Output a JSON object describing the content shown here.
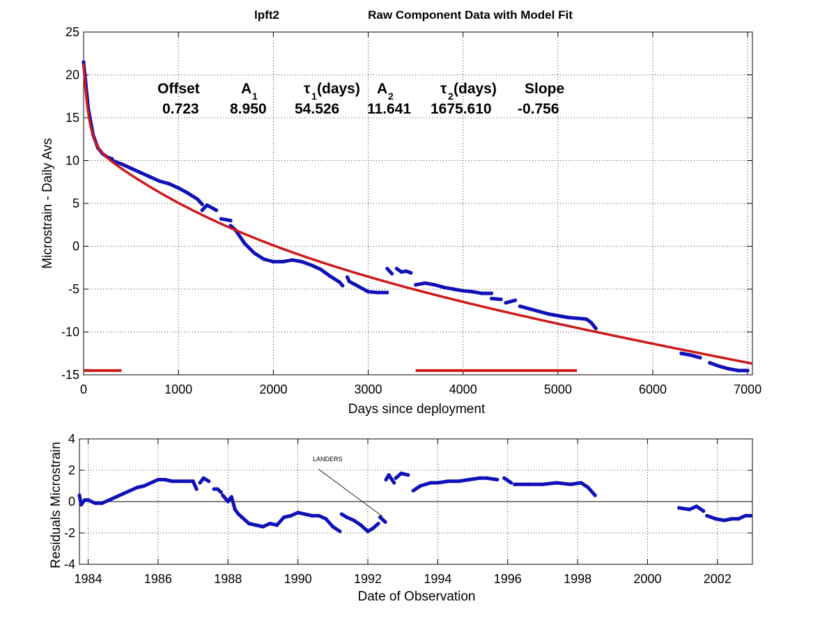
{
  "figure": {
    "station": "lpft2",
    "title": "Raw Component Data with Model Fit"
  },
  "colors": {
    "data": "#1010b8",
    "model": "#cc1a1a",
    "axes": "#000000"
  },
  "params": {
    "headers": [
      "Offset",
      "A",
      "τ",
      "(days)",
      "A",
      "τ",
      "(days)",
      "Slope"
    ],
    "subscripts": [
      "1",
      "1",
      "2",
      "2"
    ],
    "values": [
      "0.723",
      "8.950",
      "54.526",
      "11.641",
      "1675.610",
      "-0.756"
    ]
  },
  "annotation": {
    "text": "LANDERS"
  },
  "chart_data": [
    {
      "type": "scatter",
      "xlabel": "Days since deployment",
      "ylabel": "Microstrain - Daily Avs",
      "xlim": [
        0,
        7050
      ],
      "ylim": [
        -15,
        25
      ],
      "xticks": [
        0,
        1000,
        2000,
        3000,
        4000,
        5000,
        6000,
        7000
      ],
      "yticks": [
        -15,
        -10,
        -5,
        0,
        5,
        10,
        15,
        20,
        25
      ],
      "grid": true,
      "model": {
        "offset": 0.723,
        "A1": 8.95,
        "tau1": 54.526,
        "A2": 11.641,
        "tau2": 1675.61,
        "slope": -0.756,
        "x_range": [
          0,
          7050
        ]
      },
      "segments": [
        {
          "x": [
            0,
            50,
            100,
            150,
            200,
            250,
            300
          ],
          "y": [
            21.5,
            16.0,
            13.0,
            11.5,
            10.8,
            10.4,
            10.2
          ]
        },
        {
          "x": [
            300,
            400,
            500,
            600,
            700,
            800,
            900,
            1000,
            1100,
            1200,
            1250
          ],
          "y": [
            10.0,
            9.6,
            9.1,
            8.6,
            8.1,
            7.6,
            7.3,
            6.8,
            6.2,
            5.5,
            4.9
          ]
        },
        {
          "x": [
            1250,
            1300,
            1400
          ],
          "y": [
            4.2,
            4.8,
            4.2
          ]
        },
        {
          "x": [
            1450,
            1550
          ],
          "y": [
            3.2,
            3.0
          ]
        },
        {
          "x": [
            1550,
            1600,
            1700,
            1800,
            1900,
            2000,
            2100,
            2200,
            2300,
            2400,
            2500,
            2600,
            2700,
            2730
          ],
          "y": [
            2.4,
            1.9,
            0.3,
            -0.8,
            -1.5,
            -1.8,
            -1.8,
            -1.6,
            -1.8,
            -2.2,
            -2.7,
            -3.5,
            -4.2,
            -4.6
          ]
        },
        {
          "x": [
            2780,
            2800,
            2900,
            3000,
            3100,
            3200
          ],
          "y": [
            -3.6,
            -4.1,
            -4.7,
            -5.3,
            -5.4,
            -5.4
          ]
        },
        {
          "x": [
            3200,
            3250
          ],
          "y": [
            -2.6,
            -3.2
          ]
        },
        {
          "x": [
            3300,
            3350,
            3400,
            3450
          ],
          "y": [
            -2.6,
            -3.0,
            -2.9,
            -3.1
          ]
        },
        {
          "x": [
            3500,
            3600,
            3700,
            3800,
            3900,
            4000,
            4100,
            4200,
            4300
          ],
          "y": [
            -4.5,
            -4.3,
            -4.5,
            -4.8,
            -5.0,
            -5.2,
            -5.3,
            -5.5,
            -5.5
          ]
        },
        {
          "x": [
            4300,
            4400
          ],
          "y": [
            -6.1,
            -6.2
          ]
        },
        {
          "x": [
            4450,
            4550
          ],
          "y": [
            -6.6,
            -6.3
          ]
        },
        {
          "x": [
            4600,
            4700,
            4800,
            4900,
            5000,
            5100,
            5200,
            5300,
            5350,
            5400
          ],
          "y": [
            -7.0,
            -7.3,
            -7.6,
            -7.9,
            -8.1,
            -8.3,
            -8.4,
            -8.5,
            -8.9,
            -9.6
          ]
        },
        {
          "x": [
            6300,
            6400,
            6500
          ],
          "y": [
            -12.5,
            -12.7,
            -13.0
          ]
        },
        {
          "x": [
            6600,
            6700,
            6800,
            6900,
            7000
          ],
          "y": [
            -13.6,
            -14.0,
            -14.3,
            -14.5,
            -14.5
          ]
        }
      ],
      "red_bars": [
        {
          "x": [
            0,
            400
          ],
          "y": -14.5
        },
        {
          "x": [
            3500,
            5200
          ],
          "y": -14.5
        }
      ]
    },
    {
      "type": "scatter",
      "xlabel": "Date of Observation",
      "ylabel": "Residuals Microstrain",
      "xlim": [
        1983.75,
        2003.0
      ],
      "ylim": [
        -4,
        4
      ],
      "xticks": [
        1984,
        1986,
        1988,
        1990,
        1992,
        1994,
        1996,
        1998,
        2000,
        2002
      ],
      "yticks": [
        -4,
        -2,
        0,
        2,
        4
      ],
      "grid": true,
      "segments": [
        {
          "x": [
            1983.75,
            1983.8,
            1983.9,
            1984.0,
            1984.2,
            1984.4,
            1984.6,
            1984.8,
            1985.0,
            1985.2,
            1985.4,
            1985.6,
            1985.8,
            1986.0,
            1986.2,
            1986.4,
            1986.6,
            1986.8,
            1987.0,
            1987.1
          ],
          "y": [
            0.4,
            -0.2,
            0.1,
            0.1,
            -0.1,
            -0.1,
            0.1,
            0.3,
            0.5,
            0.7,
            0.9,
            1.0,
            1.2,
            1.4,
            1.4,
            1.3,
            1.3,
            1.3,
            1.3,
            0.8
          ]
        },
        {
          "x": [
            1987.2,
            1987.3,
            1987.45
          ],
          "y": [
            1.2,
            1.5,
            1.3
          ]
        },
        {
          "x": [
            1987.6,
            1987.7,
            1987.8
          ],
          "y": [
            0.8,
            0.8,
            0.6
          ]
        },
        {
          "x": [
            1987.85,
            1988.0,
            1988.1,
            1988.2,
            1988.3,
            1988.4,
            1988.6,
            1988.8,
            1989.0,
            1989.2,
            1989.4,
            1989.6,
            1989.8,
            1990.0,
            1990.2,
            1990.4,
            1990.6,
            1990.8,
            1991.0,
            1991.2
          ],
          "y": [
            0.4,
            0.0,
            0.3,
            -0.5,
            -0.8,
            -1.0,
            -1.4,
            -1.5,
            -1.6,
            -1.4,
            -1.5,
            -1.0,
            -0.9,
            -0.7,
            -0.8,
            -0.9,
            -0.9,
            -1.1,
            -1.6,
            -1.9
          ]
        },
        {
          "x": [
            1991.25,
            1991.4,
            1991.6,
            1991.8,
            1992.0,
            1992.15,
            1992.3
          ],
          "y": [
            -0.8,
            -1.0,
            -1.2,
            -1.5,
            -1.9,
            -1.7,
            -1.4
          ]
        },
        {
          "x": [
            1992.35,
            1992.45,
            1992.5
          ],
          "y": [
            -1.0,
            -1.2,
            -1.3
          ]
        },
        {
          "x": [
            1992.52,
            1992.6,
            1992.75
          ],
          "y": [
            1.4,
            1.7,
            1.2
          ]
        },
        {
          "x": [
            1992.8,
            1992.95,
            1993.15
          ],
          "y": [
            1.5,
            1.8,
            1.7
          ]
        },
        {
          "x": [
            1993.3,
            1993.5,
            1993.8,
            1994.0,
            1994.3,
            1994.6,
            1994.9,
            1995.2,
            1995.4,
            1995.7
          ],
          "y": [
            0.7,
            1.0,
            1.2,
            1.2,
            1.3,
            1.3,
            1.4,
            1.5,
            1.5,
            1.4
          ]
        },
        {
          "x": [
            1995.9,
            1996.1
          ],
          "y": [
            1.5,
            1.2
          ]
        },
        {
          "x": [
            1996.2,
            1996.6,
            1997.0,
            1997.4,
            1997.8,
            1998.1,
            1998.3,
            1998.5
          ],
          "y": [
            1.1,
            1.1,
            1.1,
            1.2,
            1.1,
            1.2,
            0.9,
            0.4
          ]
        },
        {
          "x": [
            2000.9,
            2001.2,
            2001.4,
            2001.6
          ],
          "y": [
            -0.4,
            -0.5,
            -0.3,
            -0.6
          ]
        },
        {
          "x": [
            2001.7,
            2001.95,
            2002.2,
            2002.4,
            2002.6,
            2002.8,
            2002.95
          ],
          "y": [
            -0.9,
            -1.1,
            -1.2,
            -1.1,
            -1.1,
            -0.9,
            -0.9
          ]
        }
      ],
      "landers": {
        "label_at": [
          1990.35,
          2.6
        ],
        "arrow_to": [
          1992.42,
          -0.95
        ]
      }
    }
  ]
}
